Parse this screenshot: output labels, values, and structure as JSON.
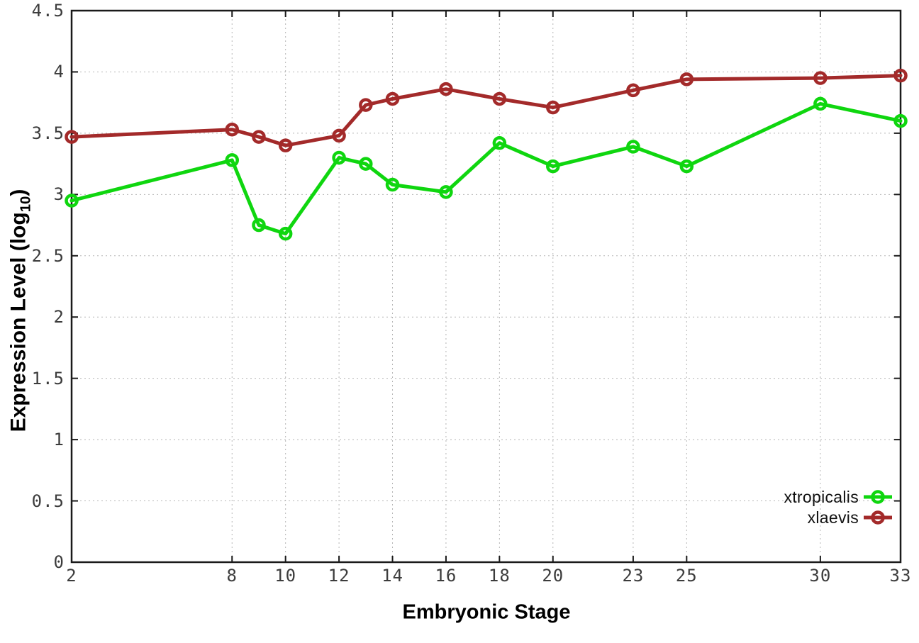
{
  "chart_data": {
    "type": "line",
    "title": "",
    "xlabel": "Embryonic Stage",
    "ylabel_pre": "Expression Level (log",
    "ylabel_sub": "10",
    "ylabel_post": ")",
    "x": [
      2,
      8,
      9,
      10,
      12,
      13,
      14,
      16,
      18,
      20,
      23,
      25,
      30,
      33
    ],
    "series": [
      {
        "name": "xtropicalis",
        "color": "#0fd60f",
        "values": [
          2.95,
          3.28,
          2.75,
          2.68,
          3.3,
          3.25,
          3.08,
          3.02,
          3.42,
          3.23,
          3.39,
          3.23,
          3.74,
          3.6
        ]
      },
      {
        "name": "xlaevis",
        "color": "#a32a2a",
        "values": [
          3.47,
          3.53,
          3.47,
          3.4,
          3.48,
          3.73,
          3.78,
          3.86,
          3.78,
          3.71,
          3.85,
          3.94,
          3.95,
          3.97
        ]
      }
    ],
    "xticks": [
      2,
      8,
      10,
      12,
      14,
      16,
      18,
      20,
      23,
      25,
      30,
      33
    ],
    "yticks": [
      0,
      0.5,
      1,
      1.5,
      2,
      2.5,
      3,
      3.5,
      4,
      4.5
    ],
    "xlim": [
      2,
      33
    ],
    "ylim": [
      0,
      4.5
    ],
    "grid": true,
    "grid_color": "#b5b5b5",
    "border_color": "#1a1a1a",
    "legend_position": "bottom-right"
  }
}
